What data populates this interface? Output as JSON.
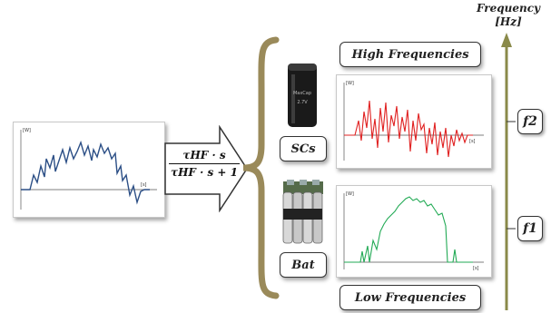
{
  "frequency_axis": {
    "title": "Frequency",
    "unit": "[Hz]"
  },
  "labels": {
    "high": "High Frequencies",
    "low": "Low Frequencies",
    "scs": "SCs",
    "bat": "Bat"
  },
  "filter": {
    "numerator": "τHF · s",
    "denominator": "τHF · s + 1"
  },
  "cutoffs": {
    "f2": "f2",
    "f1": "f1"
  },
  "plot_units": {
    "y": "[W]",
    "x": "[s]"
  },
  "colors": {
    "input": "#2c4f86",
    "high": "#e02020",
    "low": "#22aa55",
    "axis": "#8a8a4a"
  },
  "icons": {
    "supercap": "supercapacitor-icon",
    "battery": "battery-pack-icon"
  }
}
